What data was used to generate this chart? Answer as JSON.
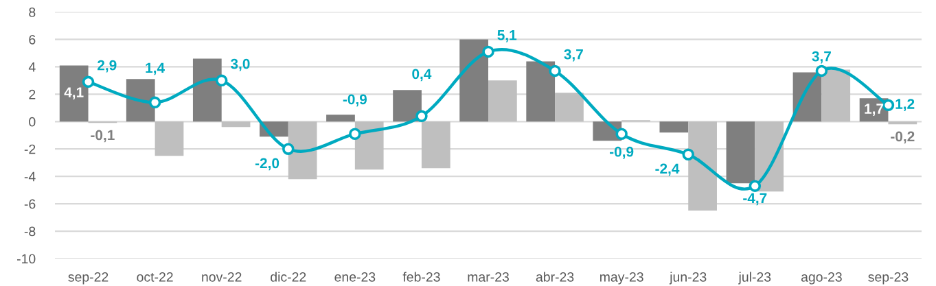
{
  "chart_data": {
    "type": "bar",
    "categories": [
      "sep-22",
      "oct-22",
      "nov-22",
      "dic-22",
      "ene-23",
      "feb-23",
      "mar-23",
      "abr-23",
      "may-23",
      "jun-23",
      "jul-23",
      "ago-23",
      "sep-23"
    ],
    "ylim": [
      -10,
      8
    ],
    "yticks": [
      -10,
      -8,
      -6,
      -4,
      -2,
      0,
      2,
      4,
      6,
      8
    ],
    "grid": "y",
    "series": [
      {
        "color": "#7f7f7f",
        "values": [
          4.1,
          3.1,
          4.6,
          -1.1,
          0.5,
          2.3,
          6.0,
          4.4,
          -1.4,
          -0.8,
          -4.5,
          3.6,
          1.7
        ],
        "value_labels": [
          "4,1",
          null,
          null,
          null,
          null,
          null,
          null,
          null,
          null,
          null,
          null,
          null,
          "1,7"
        ]
      },
      {
        "color": "#bfbfbf",
        "values": [
          -0.1,
          -2.5,
          -0.4,
          -4.2,
          -3.5,
          -3.4,
          3.0,
          2.1,
          0.1,
          -6.5,
          -5.1,
          3.8,
          -0.2
        ],
        "value_labels": [
          "-0,1",
          null,
          null,
          null,
          null,
          null,
          null,
          null,
          null,
          null,
          null,
          null,
          "-0,2"
        ]
      },
      {
        "type": "line",
        "color": "#00aac0",
        "marker": "circle",
        "values": [
          2.9,
          1.4,
          3.0,
          -2.0,
          -0.9,
          0.4,
          5.1,
          3.7,
          -0.9,
          -2.4,
          -4.7,
          3.7,
          1.2
        ],
        "value_labels": [
          "2,9",
          "1,4",
          "3,0",
          "-2,0",
          "-0,9",
          "0,4",
          "5,1",
          "3,7",
          "-0,9",
          "-2,4",
          "-4,7",
          "3,7",
          "1,2"
        ]
      }
    ]
  }
}
